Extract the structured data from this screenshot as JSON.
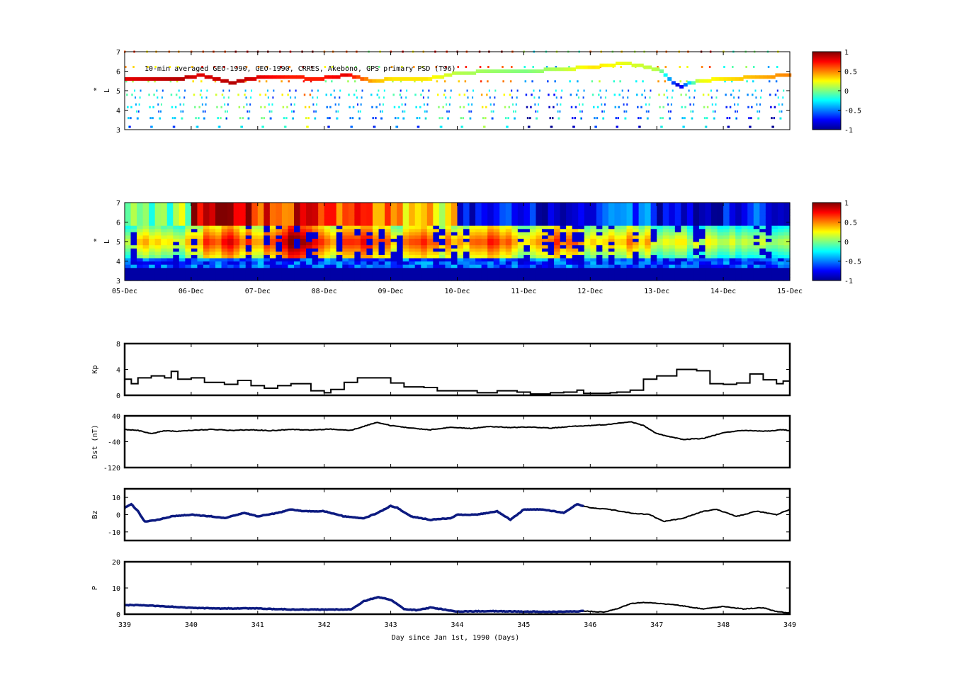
{
  "figure": {
    "title": "10-min averaged GEO-1990, GEO-1990, CRRES, Akebono, GPS  primary PSD (T96)",
    "xlabel": "Day since Jan 1st, 1990 (Days)"
  },
  "colors": {
    "colormap": [
      "#00008f",
      "#0000ff",
      "#0080ff",
      "#00ffff",
      "#80ff80",
      "#ffff00",
      "#ff8000",
      "#ff0000",
      "#800000"
    ],
    "line": "#000000",
    "observed_line": "#0c1a80"
  },
  "chart_data": [
    {
      "type": "scatter",
      "id": "obs",
      "description": "satellite-track PSD, colour scale",
      "ylabel": "L*",
      "ylabel_main": "L",
      "ylabel_sup": "*",
      "ylim": [
        3,
        7
      ],
      "yticks": [
        "3",
        "4",
        "5",
        "6",
        "7"
      ],
      "xlim": [
        339,
        349
      ],
      "colorbar": {
        "range": [
          -1,
          1
        ],
        "ticks": [
          "-1",
          "-0.5",
          "0",
          "0.5",
          "1"
        ]
      },
      "geo_track": {
        "x": [
          339.0,
          339.8,
          340.1,
          340.6,
          341.0,
          341.4,
          341.9,
          342.3,
          342.7,
          343.0,
          343.5,
          344.0,
          344.5,
          345.0,
          345.5,
          346.0,
          346.5,
          347.0,
          347.3,
          347.6,
          348.0,
          348.5,
          349.0
        ],
        "L": [
          5.6,
          5.6,
          5.8,
          5.4,
          5.7,
          5.7,
          5.6,
          5.8,
          5.5,
          5.6,
          5.6,
          5.9,
          6.0,
          6.0,
          6.1,
          6.2,
          6.4,
          6.1,
          5.2,
          5.5,
          5.6,
          5.7,
          5.8
        ],
        "psd": [
          0.8,
          0.9,
          0.8,
          0.9,
          0.8,
          0.7,
          0.7,
          0.8,
          0.4,
          0.3,
          0.3,
          0.1,
          0.05,
          0.0,
          0.1,
          0.3,
          0.2,
          0.1,
          -0.9,
          0.2,
          0.3,
          0.4,
          0.5
        ]
      },
      "arcs_per_day": 3
    },
    {
      "type": "heatmap",
      "id": "model",
      "description": "reanalysis PSD, colour scale",
      "ylabel": "L*",
      "ylabel_main": "L",
      "ylabel_sup": "*",
      "ylim": [
        3,
        7
      ],
      "yticks": [
        "3",
        "4",
        "5",
        "6",
        "7"
      ],
      "xticks": [
        "05-Dec",
        "06-Dec",
        "07-Dec",
        "08-Dec",
        "09-Dec",
        "10-Dec",
        "11-Dec",
        "12-Dec",
        "13-Dec",
        "14-Dec",
        "15-Dec"
      ],
      "colorbar": {
        "range": [
          -1,
          1
        ],
        "ticks": [
          "-1",
          "-0.5",
          "0",
          "0.5",
          "1"
        ]
      },
      "day_peak": [
        0.4,
        0.75,
        0.95,
        0.8,
        0.6,
        0.65,
        0.6,
        0.45,
        0.2,
        0.15
      ],
      "outer_level": [
        0.0,
        0.85,
        0.7,
        0.6,
        0.3,
        -0.8,
        -0.8,
        -0.6,
        -0.9,
        -0.7
      ]
    },
    {
      "type": "line",
      "id": "kp",
      "ylabel": "Kp",
      "ylim": [
        0,
        8
      ],
      "yticks": [
        "0",
        "4",
        "8"
      ],
      "xlim": [
        339,
        349
      ],
      "x": [
        339.0,
        339.1,
        339.2,
        339.4,
        339.6,
        339.7,
        339.8,
        340.0,
        340.2,
        340.5,
        340.7,
        340.9,
        341.1,
        341.3,
        341.5,
        341.8,
        342.0,
        342.1,
        342.3,
        342.5,
        342.8,
        343.0,
        343.2,
        343.5,
        343.7,
        344.0,
        344.3,
        344.6,
        344.9,
        345.1,
        345.4,
        345.6,
        345.8,
        345.9,
        346.1,
        346.3,
        346.4,
        346.6,
        346.8,
        347.0,
        347.3,
        347.6,
        347.8,
        348.0,
        348.2,
        348.4,
        348.6,
        348.8,
        348.9,
        349.0
      ],
      "y": [
        2.5,
        1.8,
        2.7,
        3.0,
        2.7,
        3.7,
        2.5,
        2.7,
        2.0,
        1.7,
        2.3,
        1.5,
        1.1,
        1.5,
        1.8,
        0.7,
        0.4,
        0.9,
        2.0,
        2.7,
        2.7,
        1.9,
        1.3,
        1.2,
        0.7,
        0.7,
        0.4,
        0.7,
        0.5,
        0.2,
        0.4,
        0.5,
        0.8,
        0.3,
        0.3,
        0.4,
        0.5,
        0.8,
        2.5,
        3.0,
        4.0,
        3.8,
        1.8,
        1.7,
        1.9,
        3.3,
        2.4,
        1.8,
        2.2,
        0.6
      ]
    },
    {
      "type": "line",
      "id": "dst",
      "ylabel": "Dst (nT)",
      "ylim": [
        -120,
        40
      ],
      "yticks": [
        "-120",
        "-40",
        "40"
      ],
      "xlim": [
        339,
        349
      ],
      "x": [
        339.0,
        339.2,
        339.4,
        339.6,
        339.8,
        340.0,
        340.3,
        340.6,
        340.9,
        341.2,
        341.5,
        341.8,
        342.1,
        342.4,
        342.6,
        342.8,
        343.0,
        343.3,
        343.6,
        343.9,
        344.2,
        344.5,
        344.8,
        345.1,
        345.4,
        345.7,
        346.0,
        346.3,
        346.6,
        346.8,
        347.0,
        347.2,
        347.4,
        347.7,
        348.0,
        348.3,
        348.6,
        348.9,
        349.0
      ],
      "y": [
        -2,
        -5,
        -15,
        -6,
        -8,
        -5,
        -2,
        -5,
        -3,
        -6,
        -2,
        -4,
        -1,
        -5,
        8,
        20,
        10,
        2,
        -3,
        5,
        1,
        7,
        4,
        5,
        2,
        7,
        10,
        14,
        22,
        10,
        -15,
        -25,
        -33,
        -30,
        -12,
        -5,
        -8,
        -3,
        -6
      ]
    },
    {
      "type": "line",
      "id": "bz",
      "ylabel": "Bz",
      "ylim": [
        -15,
        15
      ],
      "yticks": [
        "-10",
        "0",
        "10"
      ],
      "xlim": [
        339,
        349
      ],
      "x": [
        339.0,
        339.1,
        339.2,
        339.3,
        339.5,
        339.7,
        340.0,
        340.3,
        340.5,
        340.8,
        341.0,
        341.3,
        341.5,
        341.7,
        342.0,
        342.3,
        342.6,
        342.8,
        343.0,
        343.1,
        343.3,
        343.6,
        343.9,
        344.0,
        344.3,
        344.6,
        344.8,
        345.0,
        345.3,
        345.6,
        345.8,
        346.0,
        346.3,
        346.6,
        346.9,
        347.1,
        347.4,
        347.7,
        347.9,
        348.2,
        348.5,
        348.8,
        349.0
      ],
      "y": [
        4,
        6,
        2,
        -4,
        -3,
        -1,
        0,
        -1,
        -2,
        1,
        -1,
        1,
        3,
        2,
        2,
        -1,
        -2,
        1,
        5,
        4,
        -1,
        -3,
        -2,
        0,
        0,
        2,
        -3,
        3,
        3,
        1,
        6,
        4,
        3,
        1,
        0,
        -4,
        -2,
        2,
        3,
        -1,
        2,
        0,
        3
      ],
      "observed_until": 345.9
    },
    {
      "type": "line",
      "id": "pdyn",
      "ylabel": "P",
      "ylim": [
        0,
        20
      ],
      "yticks": [
        "0",
        "10",
        "20"
      ],
      "xlim": [
        339,
        349
      ],
      "xticks": [
        "339",
        "340",
        "341",
        "342",
        "343",
        "344",
        "345",
        "346",
        "347",
        "348",
        "349"
      ],
      "x": [
        339.0,
        339.3,
        339.6,
        340.0,
        340.4,
        341.0,
        341.5,
        342.0,
        342.4,
        342.6,
        342.8,
        343.0,
        343.2,
        343.4,
        343.6,
        343.8,
        344.0,
        344.5,
        345.0,
        345.5,
        345.9,
        346.2,
        346.4,
        346.6,
        346.8,
        347.0,
        347.3,
        347.7,
        348.0,
        348.3,
        348.6,
        348.8,
        349.0
      ],
      "y": [
        3.5,
        3.4,
        3.0,
        2.4,
        2.2,
        2.2,
        1.8,
        1.8,
        1.8,
        5.0,
        6.5,
        5.5,
        2.0,
        1.5,
        2.5,
        1.8,
        1.0,
        1.2,
        1.0,
        0.9,
        1.2,
        0.8,
        2.0,
        4.0,
        4.5,
        4.2,
        3.5,
        2.0,
        3.0,
        2.0,
        2.5,
        1.0,
        0.5
      ],
      "observed_until": 345.9
    }
  ]
}
